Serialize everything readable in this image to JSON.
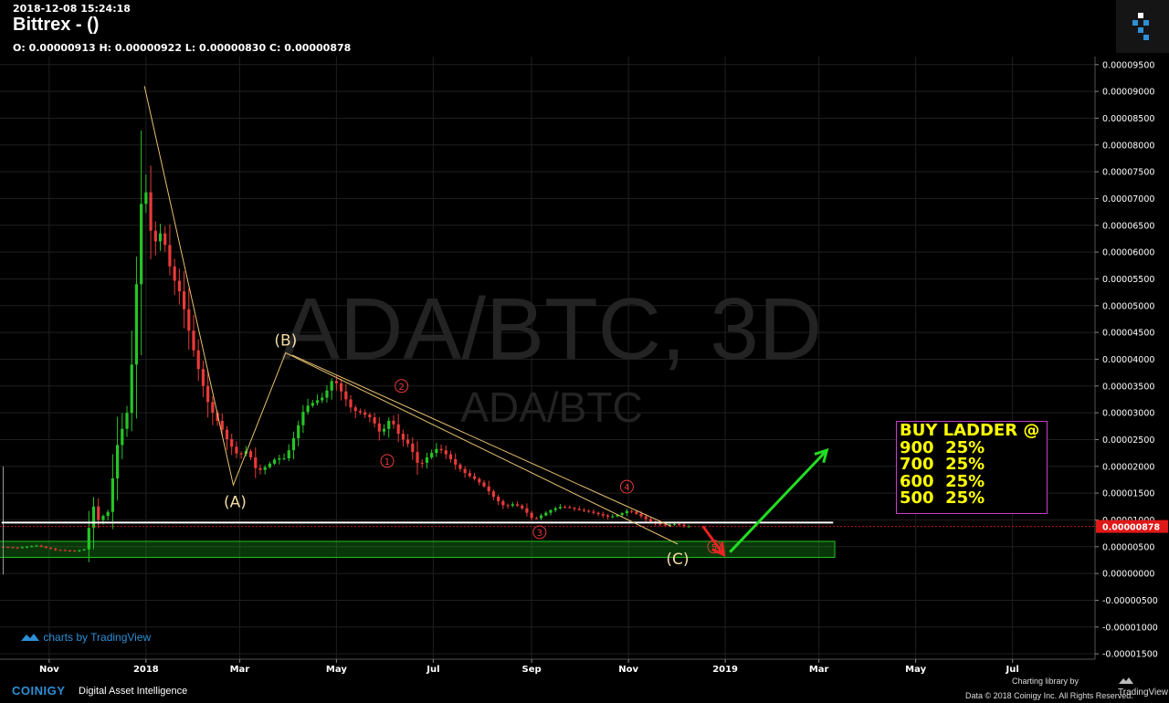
{
  "header": {
    "timestamp": "2018-12-08 15:24:18",
    "title": "Bittrex -  ()",
    "ohlc": "O: 0.00000913 H: 0.00000922 L: 0.00000830 C: 0.00000878"
  },
  "watermark": {
    "main": "ADA/BTC, 3D",
    "sub": "ADA/BTC"
  },
  "branding": {
    "tv_chart_label": "charts by TradingView",
    "coinigy": "COINIGY",
    "coinigy_tagline": "Digital Asset Intelligence",
    "charting_library": "Charting library by",
    "tradingview": "TradingView",
    "data_footer": "Data © 2018  Coinigy Inc. All Rights Reserved."
  },
  "buy_ladder": {
    "title": "BUY LADDER @",
    "rows": [
      "900  25%",
      "700  25%",
      "600  25%",
      "500  25%"
    ]
  },
  "colors": {
    "up": "#26c526",
    "down": "#e83a3a",
    "wave": "#e8c070",
    "support": "#ffffff",
    "zone": "#21c421",
    "arrow_up": "#22dd22",
    "arrow_down": "#ee2222",
    "price_tag": "#e01818",
    "ladder_border": "#c83cc8",
    "ladder_text": "#ffff00"
  },
  "chart_data": {
    "type": "candlestick",
    "pair": "ADA/BTC",
    "timeframe": "3D",
    "y_ticks": [
      "0.00009500",
      "0.00009000",
      "0.00008500",
      "0.00008000",
      "0.00007500",
      "0.00007000",
      "0.00006500",
      "0.00006000",
      "0.00005500",
      "0.00005000",
      "0.00004500",
      "0.00004000",
      "0.00003500",
      "0.00003000",
      "0.00002500",
      "0.00002000",
      "0.00001500",
      "0.00001000",
      "0.00000500",
      "0.00000000",
      "-0.00000500",
      "-0.00001000",
      "-0.00001500"
    ],
    "x_ticks": [
      "Nov",
      "2018",
      "Mar",
      "May",
      "Jul",
      "Sep",
      "Nov",
      "2019",
      "Mar",
      "May",
      "Jul"
    ],
    "ylim": [
      -1.6e-05,
      9.65e-05
    ],
    "last_price": "0.00000878",
    "price_path": [
      [
        "2017-10-02",
        5e-06
      ],
      [
        "2017-10-14",
        4.8e-06
      ],
      [
        "2017-10-26",
        5.2e-06
      ],
      [
        "2017-11-07",
        4.4e-06
      ],
      [
        "2017-11-19",
        4.2e-06
      ],
      [
        "2017-11-25",
        4.5e-06
      ],
      [
        "2017-12-01",
        1.25e-05
      ],
      [
        "2017-12-04",
        1e-05
      ],
      [
        "2017-12-10",
        1.15e-05
      ],
      [
        "2017-12-16",
        2.4e-05
      ],
      [
        "2017-12-22",
        3e-05
      ],
      [
        "2017-12-26",
        4.2e-05
      ],
      [
        "2017-12-29",
        6e-05
      ],
      [
        "2018-01-01",
        7.35e-05
      ],
      [
        "2018-01-04",
        7e-05
      ],
      [
        "2018-01-07",
        6.1e-05
      ],
      [
        "2018-01-13",
        6.4e-05
      ],
      [
        "2018-01-19",
        5.6e-05
      ],
      [
        "2018-01-25",
        5.2e-05
      ],
      [
        "2018-01-31",
        4.4e-05
      ],
      [
        "2018-02-06",
        3.7e-05
      ],
      [
        "2018-02-12",
        3.1e-05
      ],
      [
        "2018-02-18",
        2.8e-05
      ],
      [
        "2018-02-24",
        2.45e-05
      ],
      [
        "2018-03-02",
        2.2e-05
      ],
      [
        "2018-03-08",
        2.3e-05
      ],
      [
        "2018-03-14",
        1.9e-05
      ],
      [
        "2018-03-20",
        2e-05
      ],
      [
        "2018-03-26",
        2.15e-05
      ],
      [
        "2018-04-01",
        2.15e-05
      ],
      [
        "2018-04-07",
        2.6e-05
      ],
      [
        "2018-04-13",
        3.1e-05
      ],
      [
        "2018-04-19",
        3.2e-05
      ],
      [
        "2018-04-25",
        3.3e-05
      ],
      [
        "2018-05-01",
        3.65e-05
      ],
      [
        "2018-05-07",
        3.35e-05
      ],
      [
        "2018-05-13",
        3.05e-05
      ],
      [
        "2018-05-19",
        3e-05
      ],
      [
        "2018-05-25",
        2.9e-05
      ],
      [
        "2018-05-31",
        2.6e-05
      ],
      [
        "2018-06-06",
        2.9e-05
      ],
      [
        "2018-06-12",
        2.55e-05
      ],
      [
        "2018-06-18",
        2.4e-05
      ],
      [
        "2018-06-24",
        2e-05
      ],
      [
        "2018-06-30",
        2.2e-05
      ],
      [
        "2018-07-06",
        2.35e-05
      ],
      [
        "2018-07-12",
        2.2e-05
      ],
      [
        "2018-07-18",
        2e-05
      ],
      [
        "2018-07-24",
        1.85e-05
      ],
      [
        "2018-07-30",
        1.75e-05
      ],
      [
        "2018-08-05",
        1.6e-05
      ],
      [
        "2018-08-11",
        1.4e-05
      ],
      [
        "2018-08-17",
        1.25e-05
      ],
      [
        "2018-08-23",
        1.3e-05
      ],
      [
        "2018-08-29",
        1.2e-05
      ],
      [
        "2018-09-04",
        1e-05
      ],
      [
        "2018-09-10",
        1.1e-05
      ],
      [
        "2018-09-16",
        1.2e-05
      ],
      [
        "2018-09-22",
        1.25e-05
      ],
      [
        "2018-09-28",
        1.22e-05
      ],
      [
        "2018-10-04",
        1.18e-05
      ],
      [
        "2018-10-10",
        1.15e-05
      ],
      [
        "2018-10-16",
        1.1e-05
      ],
      [
        "2018-10-22",
        1.05e-05
      ],
      [
        "2018-10-28",
        1.1e-05
      ],
      [
        "2018-11-03",
        1.18e-05
      ],
      [
        "2018-11-09",
        1.1e-05
      ],
      [
        "2018-11-15",
        1e-05
      ],
      [
        "2018-11-21",
        9.2e-06
      ],
      [
        "2018-11-27",
        9e-06
      ],
      [
        "2018-12-03",
        9.3e-06
      ],
      [
        "2018-12-08",
        8.8e-06
      ]
    ],
    "annotations": {
      "wave_abc": [
        {
          "label": "",
          "date": "2017-12-31",
          "price": 9.1e-05
        },
        {
          "label": "(A)",
          "date": "2018-02-25",
          "price": 1.65e-05
        },
        {
          "label": "(B)",
          "date": "2018-03-30",
          "price": 4.12e-05
        },
        {
          "label": "(C)",
          "date": "2018-12-02",
          "price": 5.5e-06
        }
      ],
      "trend_line": [
        [
          "2018-04-03",
          4.08e-05
        ],
        [
          "2018-11-28",
          8.8e-06
        ]
      ],
      "impulse_labels": [
        {
          "label": "1",
          "date": "2018-06-02",
          "price": 2.1e-05
        },
        {
          "label": "2",
          "date": "2018-06-11",
          "price": 3.5e-05
        },
        {
          "label": "3",
          "date": "2018-09-06",
          "price": 7.7e-06
        },
        {
          "label": "4",
          "date": "2018-10-31",
          "price": 1.62e-05
        },
        {
          "label": "5",
          "date": "2018-12-25",
          "price": 5e-06
        }
      ],
      "support_line": {
        "from": "2017-10-02",
        "to": "2019-03-10",
        "price": 9.5e-06
      },
      "buy_zone": {
        "from": "2017-09-30",
        "to": "2019-03-11",
        "low": 3e-06,
        "high": 6e-06
      },
      "arrow_down": {
        "from": [
          "2018-12-18",
          8.8e-06
        ],
        "to": [
          "2018-12-31",
          3.5e-06
        ]
      },
      "arrow_up": {
        "from": [
          "2019-01-04",
          4e-06
        ],
        "to": [
          "2019-03-06",
          2.3e-05
        ]
      }
    }
  }
}
